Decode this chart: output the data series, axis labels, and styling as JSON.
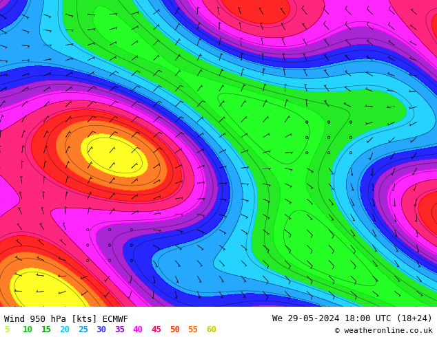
{
  "title_left": "Wind 950 hPa [kts] ECMWF",
  "title_right": "We 29-05-2024 18:00 UTC (18+24)",
  "copyright": "© weatheronline.co.uk",
  "colorbar_values": [
    5,
    10,
    15,
    20,
    25,
    30,
    35,
    40,
    45,
    50,
    55,
    60
  ],
  "colorbar_colors": [
    "#adff2f",
    "#00ff00",
    "#00e600",
    "#00ccff",
    "#0099ff",
    "#0000ff",
    "#9900cc",
    "#ff00ff",
    "#ff0066",
    "#ff0000",
    "#ff6600",
    "#ffff00"
  ],
  "colorbar_text_colors": [
    "#adff2f",
    "#00cc00",
    "#00aa00",
    "#00ccff",
    "#0099ff",
    "#3333ff",
    "#9900cc",
    "#ff00ff",
    "#ff0066",
    "#ff3300",
    "#ff6600",
    "#cccc00"
  ],
  "bg_color": "#ffffff",
  "map_bg_color": "#e8f4e8",
  "fig_width": 6.34,
  "fig_height": 4.9,
  "bottom_bar_color": "#ffffff",
  "font_size_title": 9,
  "font_size_legend": 9
}
